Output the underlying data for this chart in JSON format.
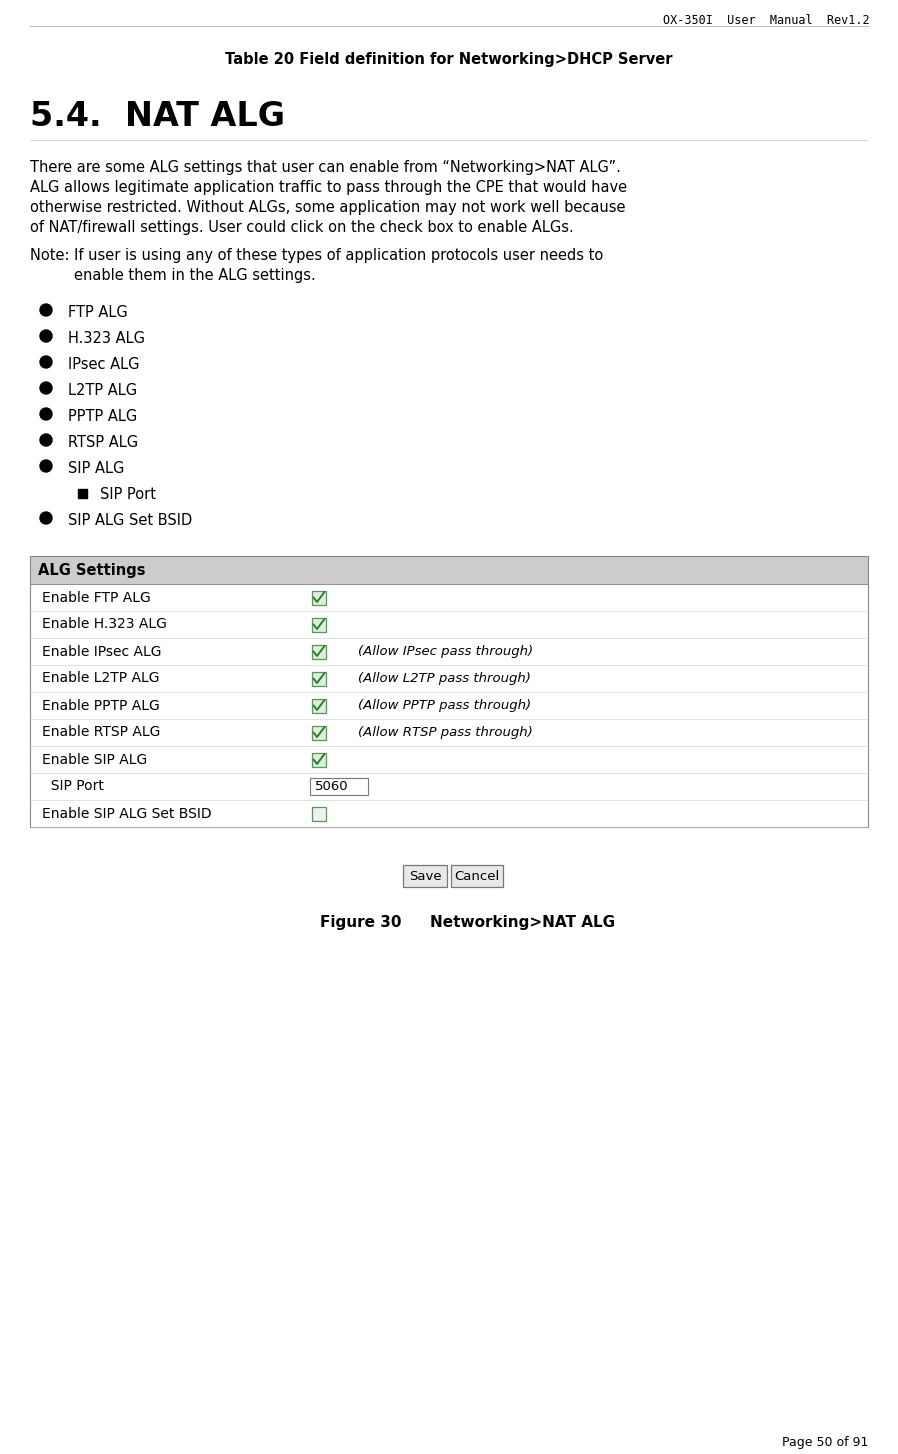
{
  "header_text": "OX-350I  User  Manual  Rev1.2",
  "table_caption": "Table 20 Field definition for Networking>DHCP Server",
  "section_title": "5.4.  NAT ALG",
  "body_lines": [
    "There are some ALG settings that user can enable from “Networking>NAT ALG”.",
    "ALG allows legitimate application traffic to pass through the CPE that would have",
    "otherwise restricted. Without ALGs, some application may not work well because",
    "of NAT/firewall settings. User could click on the check box to enable ALGs."
  ],
  "note_line1": "Note: If user is using any of these types of application protocols user needs to",
  "note_line2": "enable them in the ALG settings.",
  "bullet_items": [
    "FTP ALG",
    "H.323 ALG",
    "IPsec ALG",
    "L2TP ALG",
    "PPTP ALG",
    "RTSP ALG",
    "SIP ALG",
    "SIP ALG Set BSID"
  ],
  "sub_bullet": "SIP Port",
  "table_header": "ALG Settings",
  "table_rows": [
    {
      "label": "Enable FTP ALG",
      "checked": true,
      "note": ""
    },
    {
      "label": "Enable H.323 ALG",
      "checked": true,
      "note": ""
    },
    {
      "label": "Enable IPsec ALG",
      "checked": true,
      "note": "(Allow IPsec pass through)"
    },
    {
      "label": "Enable L2TP ALG",
      "checked": true,
      "note": "(Allow L2TP pass through)"
    },
    {
      "label": "Enable PPTP ALG",
      "checked": true,
      "note": "(Allow PPTP pass through)"
    },
    {
      "label": "Enable RTSP ALG",
      "checked": true,
      "note": "(Allow RTSP pass through)"
    },
    {
      "label": "Enable SIP ALG",
      "checked": true,
      "note": ""
    },
    {
      "label": "  SIP Port",
      "is_input": true,
      "input_value": "5060",
      "note": ""
    },
    {
      "label": "Enable SIP ALG Set BSID",
      "checked": false,
      "note": ""
    }
  ],
  "figure_label": "Figure 30",
  "figure_title": "Networking>NAT ALG",
  "page_footer": "Page 50 of 91",
  "bg_color": "#ffffff",
  "table_header_bg": "#cccccc",
  "border_color": "#888888",
  "check_color": "#2e7d2e",
  "font_color": "#000000"
}
